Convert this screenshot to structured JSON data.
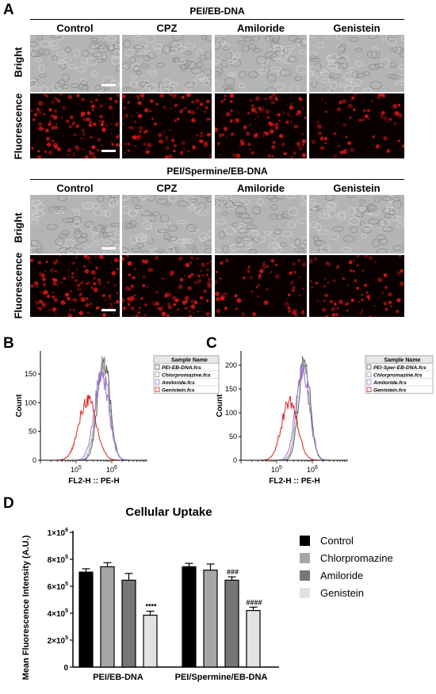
{
  "panel_letters": {
    "A": "A",
    "B": "B",
    "C": "C",
    "D": "D"
  },
  "panel_a": {
    "group1_title": "PEI/EB-DNA",
    "group2_title": "PEI/Spermine/EB-DNA",
    "columns": [
      "Control",
      "CPZ",
      "Amiloride",
      "Genistein"
    ],
    "row_bright": "Bright",
    "row_fluorescence": "Fluorescence",
    "fluorescence_intensity_group1": [
      0.85,
      0.75,
      0.8,
      0.45
    ],
    "fluorescence_intensity_group2": [
      0.9,
      0.7,
      0.45,
      0.5
    ],
    "colors": {
      "bright": "#b4b4b4",
      "fluorescence": "#d81818"
    }
  },
  "chart_data": [
    {
      "type": "line",
      "panel": "B",
      "xlabel": "FL2-H :: PE-H",
      "ylabel": "Count",
      "xscale": "log",
      "xlim": [
        10000,
        10000000
      ],
      "ylim": [
        0,
        190
      ],
      "yticks": [
        0,
        50,
        100,
        150
      ],
      "xticks": [
        {
          "value": 100000,
          "base": "10",
          "exp": "5"
        },
        {
          "value": 1000000,
          "base": "10",
          "exp": "6"
        }
      ],
      "legend_title": "Sample Name",
      "legend_position": "right",
      "series": [
        {
          "name": "PEI-EB-DNA.fcs",
          "color": "#555555",
          "peak_x": 600000,
          "peak_y": 180,
          "width": 0.17
        },
        {
          "name": "Chlorpromazine.fcs",
          "color": "#999999",
          "peak_x": 560000,
          "peak_y": 170,
          "width": 0.18
        },
        {
          "name": "Amiloride.fcs",
          "color": "#a070d8",
          "peak_x": 520000,
          "peak_y": 150,
          "width": 0.2
        },
        {
          "name": "Genistein.fcs",
          "color": "#e02020",
          "peak_x": 210000,
          "peak_y": 105,
          "width": 0.24
        }
      ]
    },
    {
      "type": "line",
      "panel": "C",
      "xlabel": "FL2-H :: PE-H",
      "ylabel": "Count",
      "xscale": "log",
      "xlim": [
        10000,
        10000000
      ],
      "ylim": [
        0,
        230
      ],
      "yticks": [
        0,
        50,
        100,
        150,
        200
      ],
      "xticks": [
        {
          "value": 100000,
          "base": "10",
          "exp": "5"
        },
        {
          "value": 1000000,
          "base": "10",
          "exp": "6"
        }
      ],
      "legend_title": "Sample Name",
      "legend_position": "right",
      "series": [
        {
          "name": "PEI-Sper-EB-DNA.fcs",
          "color": "#555555",
          "peak_x": 600000,
          "peak_y": 220,
          "width": 0.16
        },
        {
          "name": "Chlorpromazine.fcs",
          "color": "#999999",
          "peak_x": 560000,
          "peak_y": 205,
          "width": 0.17
        },
        {
          "name": "Amiloride.fcs",
          "color": "#a070d8",
          "peak_x": 530000,
          "peak_y": 190,
          "width": 0.19
        },
        {
          "name": "Genistein.fcs",
          "color": "#e02020",
          "peak_x": 230000,
          "peak_y": 125,
          "width": 0.22
        }
      ]
    },
    {
      "type": "bar",
      "panel": "D",
      "title": "Cellular Uptake",
      "ylabel": "Mean Fluorescence Intensity (A.U.)",
      "ylim": [
        0,
        1000000
      ],
      "yticks": [
        {
          "value": 0,
          "label": "0"
        },
        {
          "value": 200000,
          "label": "2×10",
          "exp": "5"
        },
        {
          "value": 400000,
          "label": "4×10",
          "exp": "5"
        },
        {
          "value": 600000,
          "label": "6×10",
          "exp": "5"
        },
        {
          "value": 800000,
          "label": "8×10",
          "exp": "5"
        },
        {
          "value": 1000000,
          "label": "1×10",
          "exp": "6"
        }
      ],
      "categories": [
        "PEI/EB-DNA",
        "PEI/Spermine/EB-DNA"
      ],
      "legend_position": "right",
      "series": [
        {
          "name": "Control",
          "color": "#000000",
          "values": [
            705000,
            745000
          ],
          "errors": [
            25000,
            25000
          ],
          "annotations": [
            "",
            ""
          ]
        },
        {
          "name": "Chlorpromazine",
          "color": "#a6a6a6",
          "values": [
            745000,
            720000
          ],
          "errors": [
            30000,
            45000
          ],
          "annotations": [
            "",
            ""
          ]
        },
        {
          "name": "Amiloride",
          "color": "#777777",
          "values": [
            645000,
            645000
          ],
          "errors": [
            50000,
            25000
          ],
          "annotations": [
            "",
            "###"
          ]
        },
        {
          "name": "Genistein",
          "color": "#e2e2e2",
          "values": [
            385000,
            420000
          ],
          "errors": [
            30000,
            25000
          ],
          "annotations": [
            "****",
            "####"
          ]
        }
      ]
    }
  ]
}
